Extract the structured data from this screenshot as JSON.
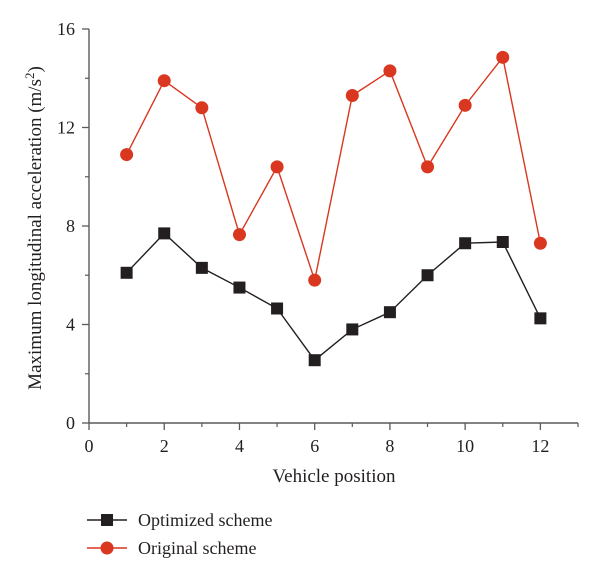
{
  "chart_data": {
    "type": "line",
    "xlabel": "Vehicle position",
    "ylabel_main": "Maximum longitudinal acceleration (m/s",
    "ylabel_sup": "2",
    "ylabel_close": ")",
    "xlim": [
      0,
      13
    ],
    "ylim": [
      0,
      16
    ],
    "xticks": [
      0,
      2,
      4,
      6,
      8,
      10,
      12
    ],
    "yticks": [
      0,
      4,
      8,
      12,
      16
    ],
    "grid": false,
    "legend_position": "bottom-left",
    "x": [
      1,
      2,
      3,
      4,
      5,
      6,
      7,
      8,
      9,
      10,
      11,
      12
    ],
    "series": [
      {
        "name": "Optimized scheme",
        "marker": "square",
        "color": "#231f20",
        "values": [
          6.1,
          7.7,
          6.3,
          5.5,
          4.65,
          2.55,
          3.8,
          4.5,
          6.0,
          7.3,
          7.35,
          4.25
        ]
      },
      {
        "name": "Original scheme",
        "marker": "circle",
        "color": "#d9371f",
        "values": [
          10.9,
          13.9,
          12.8,
          7.65,
          10.4,
          5.8,
          13.3,
          14.3,
          10.4,
          12.9,
          14.85,
          7.3
        ]
      }
    ]
  }
}
